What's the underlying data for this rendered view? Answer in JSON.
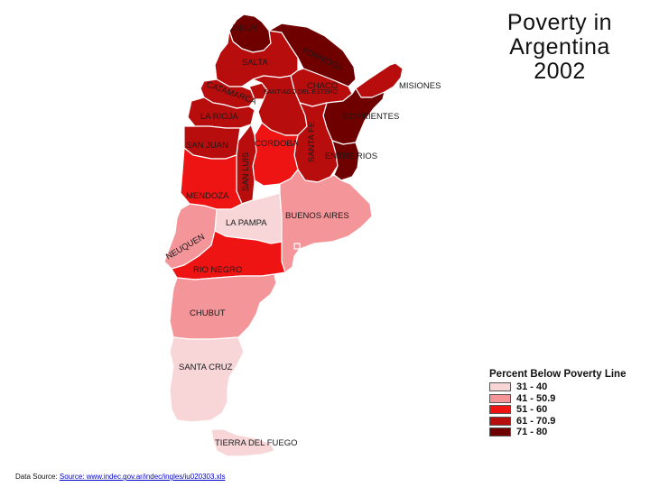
{
  "title": [
    "Poverty in",
    "Argentina",
    "2002"
  ],
  "legend": {
    "title": "Percent Below Poverty Line",
    "classes": [
      {
        "label": "31 - 40",
        "color": "#f8d6d8"
      },
      {
        "label": "41 - 50.9",
        "color": "#f4959a"
      },
      {
        "label": "51 - 60",
        "color": "#ee1414"
      },
      {
        "label": "61 - 70.9",
        "color": "#b80d0d"
      },
      {
        "label": "71 - 80",
        "color": "#6e0000"
      }
    ]
  },
  "provinces": {
    "jujuy": {
      "label": "JUJUY",
      "class": 4
    },
    "salta": {
      "label": "SALTA",
      "class": 3
    },
    "formosa": {
      "label": "FORMOSA",
      "class": 4
    },
    "chaco": {
      "label": "CHACO",
      "class": 3
    },
    "misiones": {
      "label": "MISIONES",
      "class": 3
    },
    "catamarca": {
      "label": "CATAMARCA",
      "class": 3
    },
    "tucuman": {
      "label": "",
      "class": 3
    },
    "santiago": {
      "label": "SANTIAGO DEL ESTERO",
      "class": 3
    },
    "corrientes": {
      "label": "CORRIENTES",
      "class": 4
    },
    "la_rioja": {
      "label": "LA RIOJA",
      "class": 3
    },
    "santa_fe": {
      "label": "SANTA FE",
      "class": 3
    },
    "entre_rios": {
      "label": "ENTRE RIOS",
      "class": 4
    },
    "san_juan": {
      "label": "SAN JUAN",
      "class": 3
    },
    "cordoba": {
      "label": "CORDOBA",
      "class": 2
    },
    "san_luis": {
      "label": "SAN LUIS",
      "class": 3
    },
    "mendoza": {
      "label": "MENDOZA",
      "class": 2
    },
    "la_pampa": {
      "label": "LA PAMPA",
      "class": 0
    },
    "buenos_aires": {
      "label": "BUENOS AIRES",
      "class": 1
    },
    "neuquen": {
      "label": "NEUQUEN",
      "class": 1
    },
    "rio_negro": {
      "label": "RIO NEGRO",
      "class": 2
    },
    "chubut": {
      "label": "CHUBUT",
      "class": 1
    },
    "santa_cruz": {
      "label": "SANTA CRUZ",
      "class": 0
    },
    "tierra_del_fuego": {
      "label": "TIERRA DEL FUEGO",
      "class": 0
    }
  },
  "source": {
    "prefix": "Data Source: ",
    "link_label": "Source: ",
    "url": "www.indec.gov.ar/indec/ingles/iu020303.xls"
  }
}
